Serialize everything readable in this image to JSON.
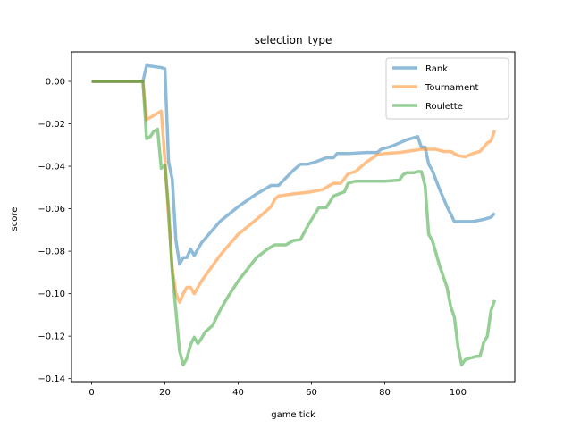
{
  "chart_data": {
    "type": "line",
    "title": "selection_type",
    "xlabel": "game tick",
    "ylabel": "score",
    "xlim": [
      -5.5,
      115.5
    ],
    "ylim": [
      -0.1414,
      0.0139
    ],
    "xticks": [
      0,
      20,
      40,
      60,
      80,
      100
    ],
    "xtick_labels": [
      "0",
      "20",
      "40",
      "60",
      "80",
      "100"
    ],
    "yticks": [
      0.0,
      -0.02,
      -0.04,
      -0.06,
      -0.08,
      -0.1,
      -0.12,
      -0.14
    ],
    "ytick_labels": [
      "0.00",
      "−0.02",
      "−0.04",
      "−0.06",
      "−0.08",
      "−0.10",
      "−0.12",
      "−0.14"
    ],
    "grid": false,
    "legend_position": "top-right",
    "series": [
      {
        "name": "Rank",
        "color": "#1f77b4",
        "x": [
          0,
          14,
          15,
          19,
          20,
          21,
          22,
          23,
          24,
          25,
          26,
          27,
          28,
          29,
          30,
          31,
          35,
          40,
          45,
          47,
          49,
          51,
          55,
          57,
          59,
          61,
          64,
          66,
          67,
          70,
          75,
          78,
          79,
          80,
          82,
          84,
          86,
          88,
          89,
          90,
          91,
          92,
          93,
          95,
          97,
          99,
          104,
          107,
          109,
          110
        ],
        "y": [
          0.0,
          0.0,
          0.0075,
          0.0065,
          0.006,
          -0.038,
          -0.046,
          -0.075,
          -0.086,
          -0.083,
          -0.083,
          -0.079,
          -0.082,
          -0.079,
          -0.076,
          -0.074,
          -0.066,
          -0.059,
          -0.053,
          -0.051,
          -0.049,
          -0.049,
          -0.042,
          -0.039,
          -0.039,
          -0.038,
          -0.036,
          -0.036,
          -0.034,
          -0.034,
          -0.0335,
          -0.0335,
          -0.032,
          -0.0315,
          -0.0305,
          -0.029,
          -0.0275,
          -0.0265,
          -0.026,
          -0.031,
          -0.031,
          -0.039,
          -0.042,
          -0.051,
          -0.059,
          -0.066,
          -0.066,
          -0.065,
          -0.064,
          -0.062
        ]
      },
      {
        "name": "Tournament",
        "color": "#ff7f0e",
        "x": [
          0,
          14,
          15,
          16,
          17,
          18,
          19,
          20,
          21,
          22,
          23,
          24,
          25,
          26,
          27,
          28,
          30,
          35,
          40,
          45,
          49,
          50,
          51,
          55,
          60,
          63,
          65,
          66,
          68,
          70,
          72,
          75,
          78,
          80,
          84,
          88,
          90,
          94,
          96,
          98,
          100,
          102,
          104,
          106,
          108,
          109,
          110
        ],
        "y": [
          0.0,
          0.0,
          -0.018,
          -0.017,
          -0.016,
          -0.015,
          -0.014,
          -0.037,
          -0.064,
          -0.088,
          -0.1,
          -0.104,
          -0.1,
          -0.097,
          -0.097,
          -0.1,
          -0.094,
          -0.082,
          -0.072,
          -0.065,
          -0.059,
          -0.0555,
          -0.054,
          -0.053,
          -0.052,
          -0.051,
          -0.049,
          -0.048,
          -0.048,
          -0.0435,
          -0.0425,
          -0.038,
          -0.0345,
          -0.034,
          -0.0335,
          -0.0325,
          -0.032,
          -0.032,
          -0.033,
          -0.033,
          -0.035,
          -0.0355,
          -0.034,
          -0.033,
          -0.029,
          -0.028,
          -0.023
        ]
      },
      {
        "name": "Roulette",
        "color": "#2ca02c",
        "x": [
          0,
          14,
          15,
          16,
          17,
          18,
          19,
          20,
          21,
          22,
          23,
          24,
          25,
          26,
          27,
          28,
          29,
          30,
          31,
          33,
          35,
          37,
          40,
          45,
          48,
          50,
          53,
          55,
          57,
          59,
          62,
          64,
          66,
          69,
          70,
          72,
          75,
          80,
          84,
          85,
          86,
          88,
          89,
          90,
          91,
          92,
          93,
          95,
          97,
          98,
          99,
          100,
          101,
          102,
          103,
          104,
          105,
          106,
          107,
          108,
          109,
          110
        ],
        "y": [
          0.0,
          0.0,
          -0.027,
          -0.026,
          -0.0235,
          -0.0225,
          -0.041,
          -0.0395,
          -0.06,
          -0.09,
          -0.108,
          -0.127,
          -0.1335,
          -0.1305,
          -0.124,
          -0.1205,
          -0.1235,
          -0.121,
          -0.118,
          -0.115,
          -0.108,
          -0.102,
          -0.094,
          -0.083,
          -0.079,
          -0.077,
          -0.077,
          -0.075,
          -0.0745,
          -0.068,
          -0.0595,
          -0.0595,
          -0.054,
          -0.052,
          -0.048,
          -0.047,
          -0.047,
          -0.047,
          -0.0465,
          -0.044,
          -0.043,
          -0.043,
          -0.0425,
          -0.0425,
          -0.049,
          -0.072,
          -0.075,
          -0.087,
          -0.097,
          -0.106,
          -0.111,
          -0.125,
          -0.1335,
          -0.131,
          -0.1305,
          -0.13,
          -0.1295,
          -0.1295,
          -0.123,
          -0.12,
          -0.108,
          -0.103
        ]
      }
    ]
  }
}
